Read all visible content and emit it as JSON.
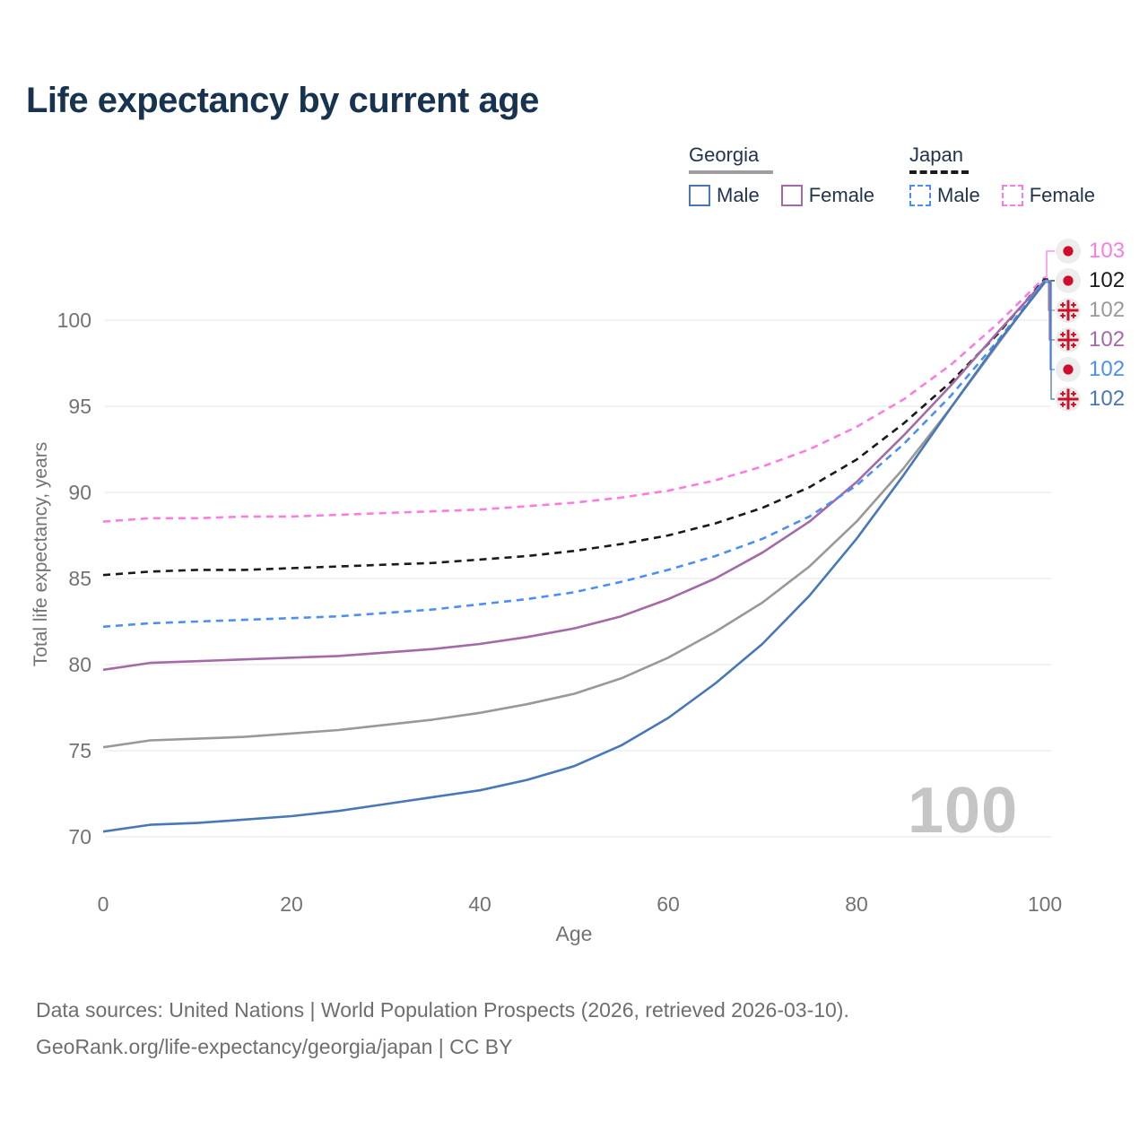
{
  "header": {
    "title": "Life expectancy by current age"
  },
  "legend": {
    "groups": [
      {
        "label": "Georgia",
        "underline_color": "#9e9e9e",
        "underline_style": "solid",
        "underline_width": 94,
        "items": [
          {
            "label": "Male",
            "color": "#4878b8",
            "dash": false
          },
          {
            "label": "Female",
            "color": "#a569a8",
            "dash": false
          }
        ]
      },
      {
        "label": "Japan",
        "underline_color": "#1a1a1a",
        "underline_style": "dashed",
        "underline_width": 66,
        "items": [
          {
            "label": "Male",
            "color": "#4a90f4",
            "dash": true
          },
          {
            "label": "Female",
            "color": "#fd7be0",
            "dash": true
          }
        ]
      }
    ]
  },
  "chart_data": {
    "type": "line",
    "title": "Life expectancy by current age",
    "xlabel": "Age",
    "ylabel": "Total life expectancy, years",
    "xlim": [
      0,
      100
    ],
    "ylim": [
      68,
      104
    ],
    "xticks": [
      0,
      20,
      40,
      60,
      80,
      100
    ],
    "yticks": [
      70,
      75,
      80,
      85,
      90,
      95,
      100
    ],
    "grid": "horizontal",
    "legend_position": "top-right",
    "watermark_age": "100",
    "x": [
      0,
      5,
      10,
      15,
      20,
      25,
      30,
      35,
      40,
      45,
      50,
      55,
      60,
      65,
      70,
      75,
      80,
      85,
      90,
      95,
      100
    ],
    "series": [
      {
        "name": "Japan Female",
        "country": "Japan",
        "sex": "Female",
        "color": "#fd7be0",
        "dash": true,
        "flag": "japan",
        "end_label": "103",
        "values": [
          88.3,
          88.5,
          88.5,
          88.6,
          88.6,
          88.7,
          88.8,
          88.9,
          89.0,
          89.2,
          89.4,
          89.7,
          90.1,
          90.7,
          91.5,
          92.5,
          93.8,
          95.4,
          97.4,
          99.8,
          102.5
        ]
      },
      {
        "name": "Japan",
        "country": "Japan",
        "sex": "Both",
        "color": "#1a1a1a",
        "dash": true,
        "flag": "japan",
        "end_label": "102",
        "values": [
          85.2,
          85.4,
          85.5,
          85.5,
          85.6,
          85.7,
          85.8,
          85.9,
          86.1,
          86.3,
          86.6,
          87.0,
          87.5,
          88.2,
          89.1,
          90.3,
          91.9,
          94.0,
          96.4,
          99.2,
          102.4
        ]
      },
      {
        "name": "Georgia",
        "country": "Georgia",
        "sex": "Both",
        "color": "#999999",
        "dash": false,
        "flag": "georgia",
        "end_label": "102",
        "values": [
          75.2,
          75.6,
          75.7,
          75.8,
          76.0,
          76.2,
          76.5,
          76.8,
          77.2,
          77.7,
          78.3,
          79.2,
          80.4,
          81.9,
          83.6,
          85.7,
          88.3,
          91.4,
          94.9,
          98.6,
          102.3
        ]
      },
      {
        "name": "Georgia Female",
        "country": "Georgia",
        "sex": "Female",
        "color": "#a569a8",
        "dash": false,
        "flag": "georgia",
        "end_label": "102",
        "values": [
          79.7,
          80.1,
          80.2,
          80.3,
          80.4,
          80.5,
          80.7,
          80.9,
          81.2,
          81.6,
          82.1,
          82.8,
          83.8,
          85.0,
          86.5,
          88.3,
          90.6,
          93.3,
          96.2,
          99.3,
          102.3
        ]
      },
      {
        "name": "Japan Male",
        "country": "Japan",
        "sex": "Male",
        "color": "#4a90f4",
        "dash": true,
        "flag": "japan",
        "end_label": "102",
        "values": [
          82.2,
          82.4,
          82.5,
          82.6,
          82.7,
          82.8,
          83.0,
          83.2,
          83.5,
          83.8,
          84.2,
          84.8,
          85.5,
          86.3,
          87.3,
          88.6,
          90.4,
          92.8,
          95.6,
          98.8,
          102.3
        ]
      },
      {
        "name": "Georgia Male",
        "country": "Georgia",
        "sex": "Male",
        "color": "#4878b8",
        "dash": false,
        "flag": "georgia",
        "end_label": "102",
        "values": [
          70.3,
          70.7,
          70.8,
          71.0,
          71.2,
          71.5,
          71.9,
          72.3,
          72.7,
          73.3,
          74.1,
          75.3,
          76.9,
          78.9,
          81.2,
          84.0,
          87.3,
          91.0,
          94.9,
          98.7,
          102.2
        ]
      }
    ],
    "flag_colors": {
      "japan_red": "#d00c2d",
      "georgia_red": "#ce1126",
      "icon_bg": "#ededed"
    },
    "grid_color": "#e9e9e9"
  },
  "footer": {
    "line1": "Data sources: United Nations | World Population Prospects (2026, retrieved 2026-03-10).",
    "line2": "GeoRank.org/life-expectancy/georgia/japan | CC BY"
  }
}
